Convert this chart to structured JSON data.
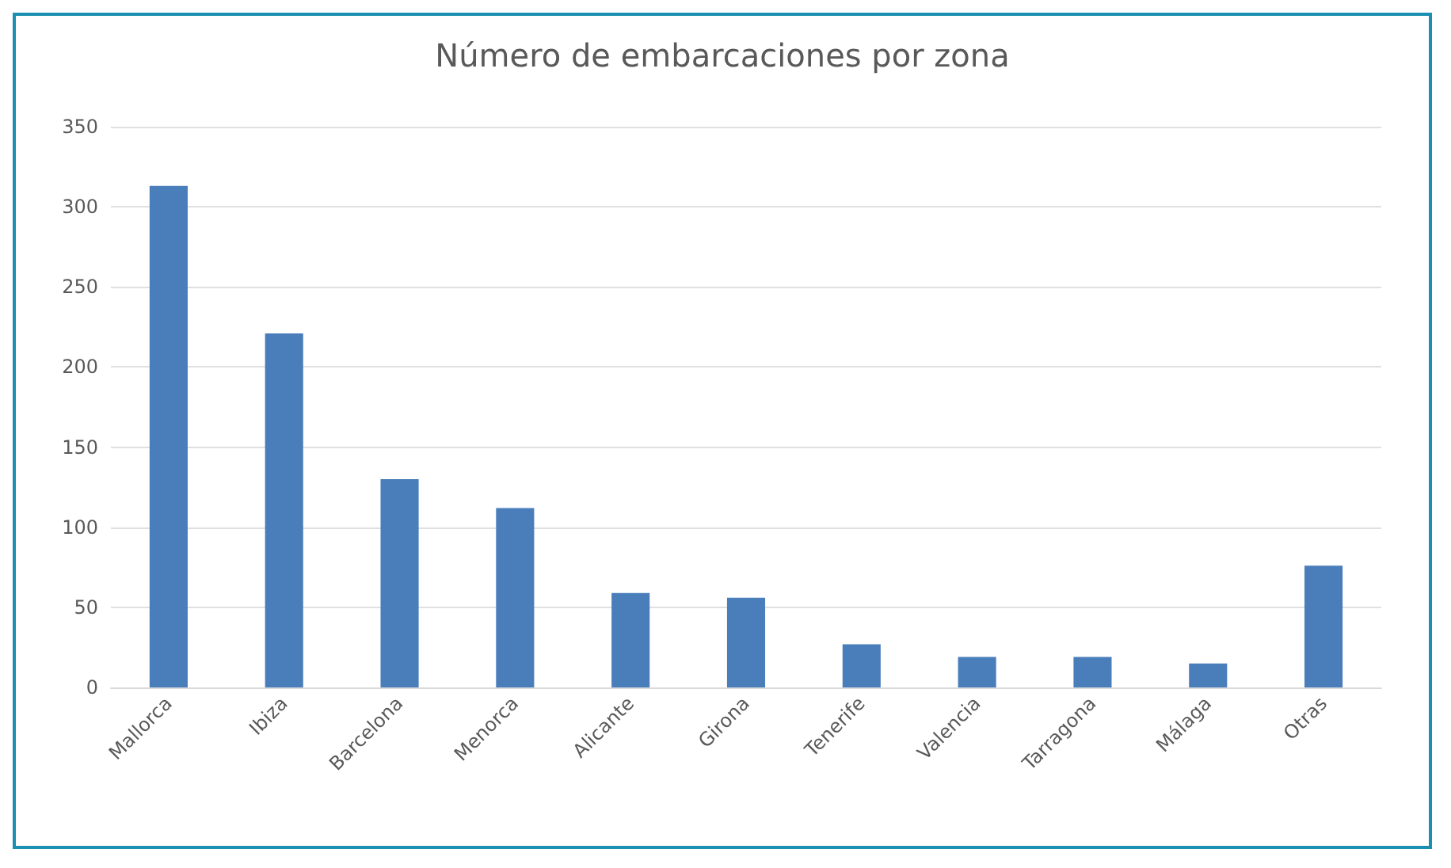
{
  "chart_data": {
    "type": "bar",
    "title": "Número de embarcaciones por zona",
    "categories": [
      "Mallorca",
      "Ibiza",
      "Barcelona",
      "Menorca",
      "Alicante",
      "Girona",
      "Tenerife",
      "Valencia",
      "Tarragona",
      "Málaga",
      "Otras"
    ],
    "values": [
      313,
      221,
      130,
      112,
      59,
      56,
      27,
      19,
      19,
      15,
      76
    ],
    "color": "#4a7ebb",
    "ylim": [
      0,
      350
    ],
    "yticks": [
      0,
      50,
      100,
      150,
      200,
      250,
      300,
      350
    ],
    "grid": "y"
  }
}
